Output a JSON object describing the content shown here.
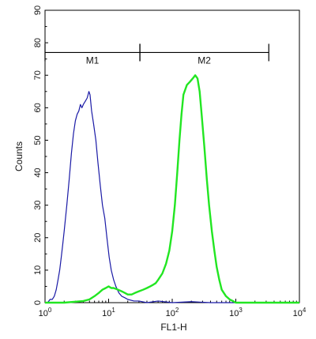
{
  "chart_data": {
    "type": "line",
    "xlabel": "FL1-H",
    "ylabel": "Counts",
    "x_scale": "log",
    "xlim": [
      1,
      10000
    ],
    "ylim": [
      0,
      90
    ],
    "x_ticks": [
      {
        "value": 1,
        "base": "10",
        "exp": "0"
      },
      {
        "value": 10,
        "base": "10",
        "exp": "1"
      },
      {
        "value": 100,
        "base": "10",
        "exp": "2"
      },
      {
        "value": 1000,
        "base": "10",
        "exp": "3"
      },
      {
        "value": 10000,
        "base": "10",
        "exp": "4"
      }
    ],
    "y_ticks": [
      "0",
      "10",
      "20",
      "30",
      "40",
      "50",
      "60",
      "70",
      "80",
      "90"
    ],
    "grid": false,
    "markers": [
      {
        "label": "M1",
        "x_start": 1,
        "x_end": 31,
        "y": 77
      },
      {
        "label": "M2",
        "x_start": 31,
        "x_end": 3300,
        "y": 77
      }
    ],
    "series": [
      {
        "color": "#1a1aa6",
        "points": [
          [
            1.0,
            0
          ],
          [
            1.1,
            0
          ],
          [
            1.2,
            1
          ],
          [
            1.3,
            1
          ],
          [
            1.4,
            2
          ],
          [
            1.5,
            4
          ],
          [
            1.6,
            7
          ],
          [
            1.7,
            10
          ],
          [
            1.8,
            14
          ],
          [
            1.9,
            18
          ],
          [
            2.0,
            22
          ],
          [
            2.2,
            30
          ],
          [
            2.4,
            38
          ],
          [
            2.6,
            46
          ],
          [
            2.8,
            52
          ],
          [
            3.0,
            56
          ],
          [
            3.2,
            58
          ],
          [
            3.4,
            59
          ],
          [
            3.6,
            61
          ],
          [
            3.8,
            60
          ],
          [
            4.0,
            61
          ],
          [
            4.3,
            62
          ],
          [
            4.6,
            63
          ],
          [
            4.9,
            65
          ],
          [
            5.1,
            64
          ],
          [
            5.4,
            59
          ],
          [
            5.8,
            55
          ],
          [
            6.3,
            50
          ],
          [
            6.8,
            43
          ],
          [
            7.4,
            36
          ],
          [
            8.0,
            30
          ],
          [
            8.7,
            26
          ],
          [
            9.4,
            20
          ],
          [
            10.2,
            14
          ],
          [
            11.0,
            10
          ],
          [
            12.0,
            7
          ],
          [
            13.0,
            5
          ],
          [
            14.5,
            3
          ],
          [
            16.0,
            2
          ],
          [
            18.0,
            1.5
          ],
          [
            20.0,
            1
          ],
          [
            25.0,
            0.5
          ],
          [
            30.0,
            0.5
          ],
          [
            40.0,
            0
          ],
          [
            60.0,
            0.5
          ],
          [
            100.0,
            0
          ],
          [
            200.0,
            0.3
          ],
          [
            400.0,
            0
          ],
          [
            1000.0,
            0
          ],
          [
            10000.0,
            0
          ]
        ]
      },
      {
        "color": "#22e622",
        "points": [
          [
            1.0,
            0
          ],
          [
            2.0,
            0
          ],
          [
            3.0,
            0.3
          ],
          [
            4.0,
            0.5
          ],
          [
            5.0,
            1
          ],
          [
            6.0,
            2
          ],
          [
            7.0,
            3
          ],
          [
            8.0,
            4
          ],
          [
            9.0,
            4.5
          ],
          [
            10.0,
            5
          ],
          [
            11.0,
            4.5
          ],
          [
            12.0,
            4.5
          ],
          [
            14.0,
            4
          ],
          [
            16.0,
            3.5
          ],
          [
            18.0,
            3
          ],
          [
            20.0,
            2.5
          ],
          [
            23.0,
            2.5
          ],
          [
            26.0,
            3
          ],
          [
            30.0,
            3.5
          ],
          [
            35.0,
            4
          ],
          [
            40.0,
            4.5
          ],
          [
            45.0,
            5
          ],
          [
            50.0,
            5.5
          ],
          [
            55.0,
            6
          ],
          [
            60.0,
            7
          ],
          [
            70.0,
            9
          ],
          [
            80.0,
            12
          ],
          [
            90.0,
            16
          ],
          [
            100.0,
            22
          ],
          [
            110.0,
            30
          ],
          [
            120.0,
            40
          ],
          [
            130.0,
            50
          ],
          [
            140.0,
            58
          ],
          [
            150.0,
            64
          ],
          [
            170.0,
            67
          ],
          [
            190.0,
            68
          ],
          [
            210.0,
            69
          ],
          [
            230.0,
            70
          ],
          [
            250.0,
            69
          ],
          [
            270.0,
            65
          ],
          [
            290.0,
            58
          ],
          [
            320.0,
            48
          ],
          [
            350.0,
            38
          ],
          [
            380.0,
            30
          ],
          [
            420.0,
            22
          ],
          [
            460.0,
            16
          ],
          [
            500.0,
            11
          ],
          [
            550.0,
            7
          ],
          [
            600.0,
            4
          ],
          [
            700.0,
            2
          ],
          [
            800.0,
            1
          ],
          [
            900.0,
            0.5
          ],
          [
            1000.0,
            0
          ],
          [
            2000.0,
            0
          ],
          [
            10000.0,
            0
          ]
        ]
      }
    ]
  }
}
